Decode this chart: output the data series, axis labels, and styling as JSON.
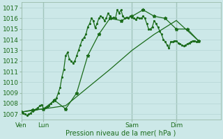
{
  "bg_color": "#cce8e8",
  "grid_color": "#aacccc",
  "line_color": "#1a6b1a",
  "marker_color": "#1a6b1a",
  "title": "Pression niveau de la mer( hPa )",
  "ylabel_ticks": [
    1007,
    1008,
    1009,
    1010,
    1011,
    1012,
    1013,
    1014,
    1015,
    1016,
    1017
  ],
  "ylim": [
    1006.5,
    1017.5
  ],
  "xlim": [
    0,
    108
  ],
  "xtick_positions": [
    0,
    12,
    60,
    84
  ],
  "xtick_labels": [
    "Ven",
    "Lun",
    "Sam",
    "Dim"
  ],
  "vlines": [
    12,
    60,
    84
  ],
  "series1_x": [
    0,
    1,
    2,
    3,
    4,
    5,
    6,
    7,
    8,
    9,
    10,
    11,
    12,
    13,
    14,
    15,
    16,
    17,
    18,
    19,
    20,
    21,
    22,
    23,
    24,
    25,
    26,
    27,
    28,
    29,
    30,
    31,
    32,
    33,
    34,
    35,
    36,
    37,
    38,
    39,
    40,
    41,
    42,
    43,
    44,
    45,
    46,
    47,
    48,
    49,
    50,
    51,
    52,
    53,
    54,
    55,
    56,
    57,
    58,
    59,
    60,
    61,
    62,
    63,
    64,
    65,
    66,
    67,
    68,
    69,
    70,
    71,
    72,
    73,
    74,
    75,
    76,
    77,
    78,
    79,
    80,
    81,
    82,
    83,
    84,
    85,
    86,
    87,
    88,
    89,
    90,
    91,
    92,
    93,
    94,
    95
  ],
  "series1_y": [
    1007.2,
    1007.1,
    1007.0,
    1006.9,
    1007.0,
    1007.1,
    1007.3,
    1007.4,
    1007.5,
    1007.6,
    1007.8,
    1007.9,
    1007.5,
    1007.6,
    1007.7,
    1007.8,
    1008.0,
    1008.2,
    1008.3,
    1008.5,
    1009.0,
    1009.5,
    1010.5,
    1011.2,
    1012.5,
    1012.8,
    1012.2,
    1012.0,
    1011.8,
    1012.0,
    1012.5,
    1013.0,
    1013.5,
    1014.0,
    1014.2,
    1014.5,
    1015.2,
    1015.5,
    1016.0,
    1015.8,
    1015.1,
    1015.5,
    1016.0,
    1016.2,
    1016.1,
    1015.8,
    1016.0,
    1016.5,
    1016.2,
    1016.0,
    1016.1,
    1016.0,
    1016.8,
    1016.5,
    1016.8,
    1016.2,
    1016.0,
    1016.1,
    1016.0,
    1016.2,
    1016.1,
    1016.0,
    1015.9,
    1016.1,
    1016.0,
    1016.0,
    1016.2,
    1016.0,
    1015.5,
    1015.0,
    1015.0,
    1015.2,
    1015.8,
    1015.5,
    1015.2,
    1014.8,
    1014.5,
    1014.0,
    1013.8,
    1013.5,
    1013.2,
    1013.8,
    1013.8,
    1013.9,
    1013.9,
    1013.7,
    1013.6,
    1013.5,
    1013.4,
    1013.5,
    1013.6,
    1013.7,
    1013.8,
    1013.9,
    1013.9,
    1013.8
  ],
  "series2_x": [
    0,
    6,
    12,
    18,
    24,
    30,
    36,
    42,
    48,
    54,
    60,
    66,
    72,
    78,
    84,
    90,
    96
  ],
  "series2_y": [
    1007.2,
    1007.4,
    1007.5,
    1008.3,
    1007.5,
    1009.0,
    1012.5,
    1014.5,
    1016.0,
    1015.8,
    1016.2,
    1016.8,
    1016.2,
    1016.0,
    1015.0,
    1015.0,
    1013.9
  ],
  "series3_x": [
    0,
    12,
    24,
    36,
    48,
    60,
    72,
    84,
    96
  ],
  "series3_y": [
    1007.2,
    1007.5,
    1007.8,
    1009.5,
    1011.2,
    1013.0,
    1014.5,
    1015.8,
    1013.9
  ]
}
